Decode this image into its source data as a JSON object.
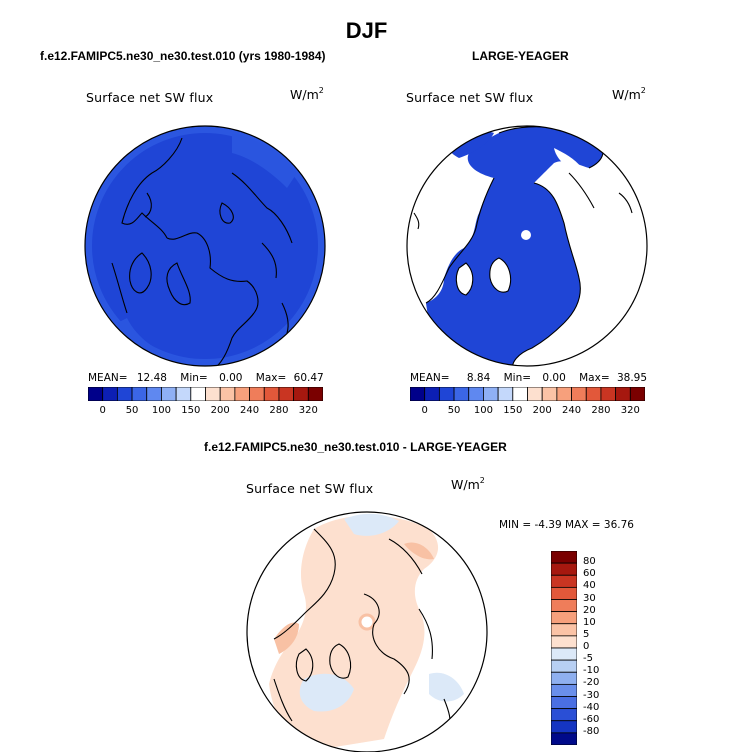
{
  "main_title": "DJF",
  "panels": [
    {
      "case_title": "f.e12.FAMIPC5.ne30_ne30.test.010 (yrs 1980-1984)",
      "plot_title": "Surface net SW flux",
      "units": "W/m",
      "units_exp": "2",
      "stats": {
        "mean_label": "MEAN=",
        "mean": "12.48",
        "min_label": "Min=",
        "min": "0.00",
        "max_label": "Max=",
        "max": "60.47"
      }
    },
    {
      "case_title": "LARGE-YEAGER",
      "plot_title": "Surface net SW flux",
      "units": "W/m",
      "units_exp": "2",
      "stats": {
        "mean_label": "MEAN=",
        "mean": "8.84",
        "min_label": "Min=",
        "min": "0.00",
        "max_label": "Max=",
        "max": "38.95"
      }
    },
    {
      "case_title": "f.e12.FAMIPC5.ne30_ne30.test.010 - LARGE-YEAGER",
      "plot_title": "Surface net SW flux",
      "units": "W/m",
      "units_exp": "2",
      "stats_line": "MIN =   -4.39  MAX =   36.76"
    }
  ],
  "colors": {
    "field_fill": "#1f45d6",
    "field_band": "#2b52dc",
    "land": "#ffffff",
    "diff_pos": "#fde0cf",
    "diff_pos2": "#f8c1a4",
    "diff_neg": "#dce9f8"
  },
  "chart_data": [
    {
      "type": "heatmap",
      "projection": "north polar stereographic",
      "title": "Surface net SW flux",
      "units": "W/m2",
      "mean": 12.48,
      "min": 0.0,
      "max": 60.47,
      "colorbar": {
        "orientation": "horizontal",
        "levels": [
          "0",
          "50",
          "100",
          "150",
          "200",
          "240",
          "280",
          "320"
        ],
        "colors": [
          "#00008a",
          "#0c1fb4",
          "#1f45d6",
          "#3b66e6",
          "#5f88f0",
          "#8fb0f5",
          "#c4d8fb",
          "#ffffff",
          "#fde0cf",
          "#fbc3a6",
          "#f7a07c",
          "#ef7d5a",
          "#e2583a",
          "#c93522",
          "#a6180f",
          "#7a0000"
        ]
      }
    },
    {
      "type": "heatmap",
      "projection": "north polar stereographic",
      "title": "Surface net SW flux",
      "units": "W/m2",
      "mean": 8.84,
      "min": 0.0,
      "max": 38.95,
      "colorbar": {
        "orientation": "horizontal",
        "levels": [
          "0",
          "50",
          "100",
          "150",
          "200",
          "240",
          "280",
          "320"
        ],
        "colors": [
          "#00008a",
          "#0c1fb4",
          "#1f45d6",
          "#3b66e6",
          "#5f88f0",
          "#8fb0f5",
          "#c4d8fb",
          "#ffffff",
          "#fde0cf",
          "#fbc3a6",
          "#f7a07c",
          "#ef7d5a",
          "#e2583a",
          "#c93522",
          "#a6180f",
          "#7a0000"
        ]
      }
    },
    {
      "type": "heatmap",
      "projection": "north polar stereographic",
      "title": "Surface net SW flux",
      "units": "W/m2",
      "min": -4.39,
      "max": 36.76,
      "colorbar": {
        "orientation": "vertical",
        "levels": [
          "80",
          "60",
          "40",
          "30",
          "20",
          "10",
          "5",
          "0",
          "-5",
          "-10",
          "-20",
          "-30",
          "-40",
          "-60",
          "-80"
        ],
        "colors": [
          "#7a0000",
          "#a6180f",
          "#c93522",
          "#e2583a",
          "#ef7d5a",
          "#f7a07c",
          "#fbc3a6",
          "#fde0cf",
          "#dce9f8",
          "#b7cff3",
          "#8fb0f0",
          "#6a8feb",
          "#4a6fe3",
          "#2a4fd6",
          "#1535c2",
          "#000a8a"
        ]
      }
    }
  ]
}
